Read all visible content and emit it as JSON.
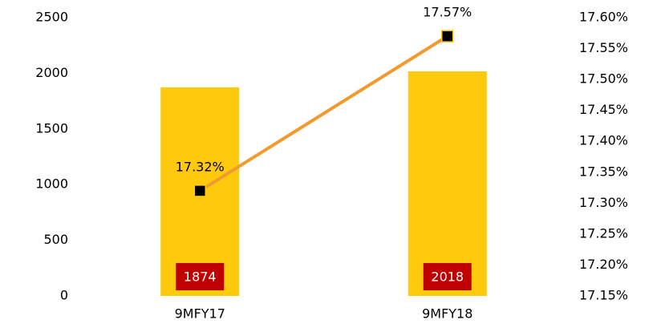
{
  "chart_data": {
    "type": "bar",
    "categories": [
      "9MFY17",
      "9MFY18"
    ],
    "series": [
      {
        "type": "bar",
        "color": "#ffc90e",
        "values": [
          1874,
          2018
        ],
        "label_color": "#c00000"
      },
      {
        "type": "line",
        "axis": "y2",
        "color": "#f29a2e",
        "marker_color": "#000000",
        "values": [
          17.32,
          17.57
        ],
        "value_labels": [
          "17.32%",
          "17.57%"
        ]
      }
    ],
    "ylim": [
      0,
      2500
    ],
    "yticks": [
      0,
      500,
      1000,
      1500,
      2000,
      2500
    ],
    "y2lim": [
      17.15,
      17.6
    ],
    "y2ticks": [
      {
        "value": 17.15,
        "label": "17.15%"
      },
      {
        "value": 17.2,
        "label": "17.20%"
      },
      {
        "value": 17.25,
        "label": "17.25%"
      },
      {
        "value": 17.3,
        "label": "17.30%"
      },
      {
        "value": 17.35,
        "label": "17.35%"
      },
      {
        "value": 17.4,
        "label": "17.40%"
      },
      {
        "value": 17.45,
        "label": "17.45%"
      },
      {
        "value": 17.5,
        "label": "17.50%"
      },
      {
        "value": 17.55,
        "label": "17.55%"
      },
      {
        "value": 17.6,
        "label": "17.60%"
      }
    ],
    "grid": false
  }
}
